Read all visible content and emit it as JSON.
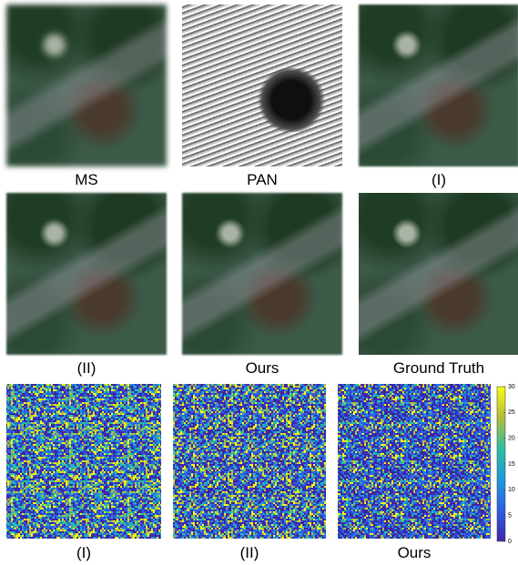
{
  "panels": [
    {
      "caption": "MS"
    },
    {
      "caption": "PAN"
    },
    {
      "caption": "(I)"
    },
    {
      "caption": "(II)"
    },
    {
      "caption": "Ours"
    },
    {
      "caption": "Ground Truth"
    }
  ],
  "error_maps": [
    {
      "caption": "(I)"
    },
    {
      "caption": "(II)"
    },
    {
      "caption": "Ours"
    }
  ],
  "colorbar": {
    "lim": [
      0,
      30
    ],
    "ticks": [
      0,
      5,
      10,
      15,
      20,
      25,
      30
    ]
  }
}
